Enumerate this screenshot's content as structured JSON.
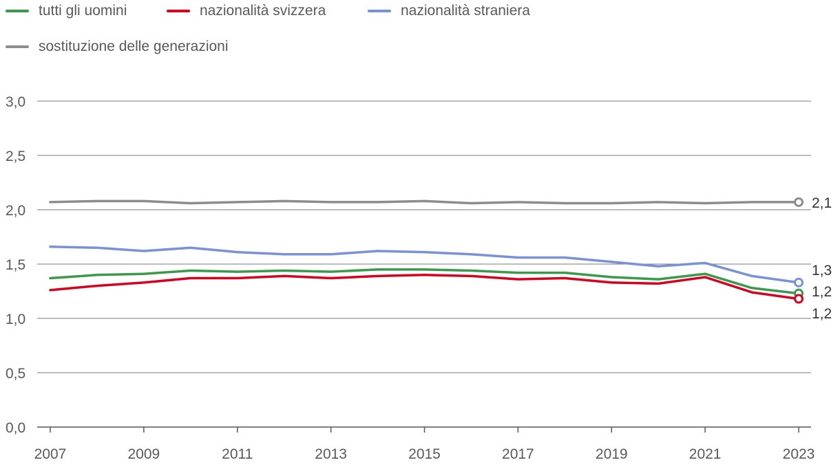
{
  "chart_data": {
    "type": "line",
    "title": "",
    "xlabel": "",
    "ylabel": "",
    "x": [
      2007,
      2008,
      2009,
      2010,
      2011,
      2012,
      2013,
      2014,
      2015,
      2016,
      2017,
      2018,
      2019,
      2020,
      2021,
      2022,
      2023
    ],
    "xticks": [
      "2007",
      "2009",
      "2011",
      "2013",
      "2015",
      "2017",
      "2019",
      "2021",
      "2023"
    ],
    "yticks": [
      "0,0",
      "0,5",
      "1,0",
      "1,5",
      "2,0",
      "2,5",
      "3,0"
    ],
    "ylim": [
      0,
      3
    ],
    "grid": true,
    "legend_position": "top-left",
    "series": [
      {
        "name": "tutti gli uomini",
        "color": "#3a9a4a",
        "values": [
          1.37,
          1.4,
          1.41,
          1.44,
          1.43,
          1.44,
          1.43,
          1.45,
          1.45,
          1.44,
          1.42,
          1.42,
          1.38,
          1.36,
          1.41,
          1.28,
          1.23
        ],
        "end_label": "1,2"
      },
      {
        "name": "nazionalità svizzera",
        "color": "#d7001f",
        "values": [
          1.26,
          1.3,
          1.33,
          1.37,
          1.37,
          1.39,
          1.37,
          1.39,
          1.4,
          1.39,
          1.36,
          1.37,
          1.33,
          1.32,
          1.38,
          1.24,
          1.18
        ],
        "end_label": "1,2"
      },
      {
        "name": "nazionalità straniera",
        "color": "#7891d8",
        "values": [
          1.66,
          1.65,
          1.62,
          1.65,
          1.61,
          1.59,
          1.59,
          1.62,
          1.61,
          1.59,
          1.56,
          1.56,
          1.52,
          1.48,
          1.51,
          1.39,
          1.33
        ],
        "end_label": "1,3"
      },
      {
        "name": "sostituzione delle generazioni",
        "color": "#8c8c8c",
        "values": [
          2.07,
          2.08,
          2.08,
          2.06,
          2.07,
          2.08,
          2.07,
          2.07,
          2.08,
          2.06,
          2.07,
          2.06,
          2.06,
          2.07,
          2.06,
          2.07,
          2.07
        ],
        "end_label": "2,1"
      }
    ]
  }
}
